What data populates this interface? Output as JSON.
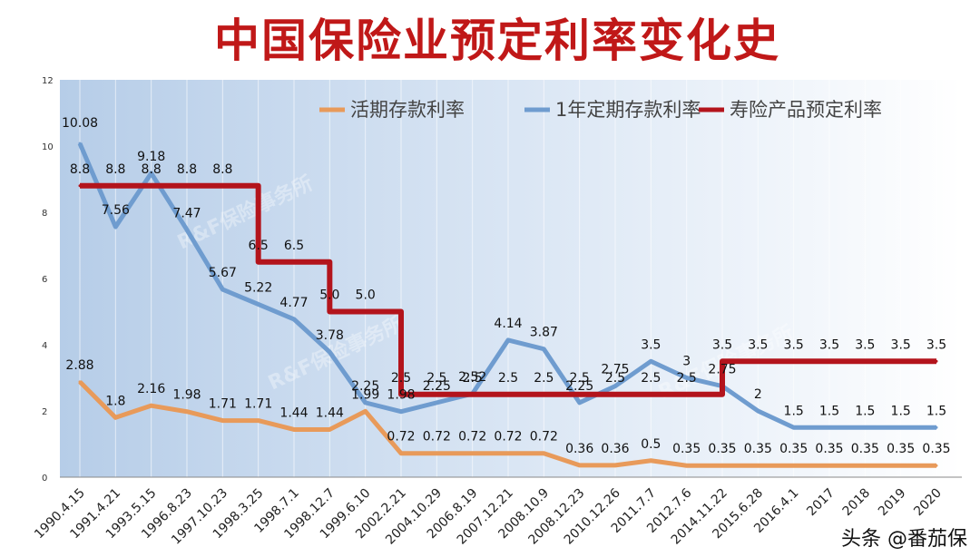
{
  "title": "中国保险业预定利率变化史",
  "watermark_text": "R&F保险事务所",
  "footer_text": "头条 @番茄保",
  "colors": {
    "title": "#c01818",
    "demand": "#e89a5a",
    "one_year": "#6f9ccf",
    "life": "#b3141c",
    "plot_bg_left": "#b6cde8",
    "plot_bg_right": "#ffffff"
  },
  "chart_data": {
    "type": "line",
    "title": "中国保险业预定利率变化史",
    "xlabel": "",
    "ylabel": "",
    "ylim": [
      0,
      12
    ],
    "yticks": [
      "0",
      "2",
      "4",
      "6",
      "8",
      "10",
      "12"
    ],
    "grid": "vertical",
    "legend_position": "top-right",
    "categories": [
      "1990.4.15",
      "1991.4.21",
      "1993.5.15",
      "1996.8.23",
      "1997.10.23",
      "1998.3.25",
      "1998.7.1",
      "1998.12.7",
      "1999.6.10",
      "2002.2.21",
      "2004.10.29",
      "2006.8.19",
      "2007.12.21",
      "2008.10.9",
      "2008.12.23",
      "2010.12.26",
      "2011.7.7",
      "2012.7.6",
      "2014.11.22",
      "2015.6.28",
      "2016.4.1",
      "2017",
      "2018",
      "2019",
      "2020"
    ],
    "series": [
      {
        "name": "活期存款利率",
        "style": "line",
        "values": [
          2.88,
          1.8,
          2.16,
          1.98,
          1.71,
          1.71,
          1.44,
          1.44,
          1.99,
          0.72,
          0.72,
          0.72,
          0.72,
          0.72,
          0.36,
          0.36,
          0.5,
          0.35,
          0.35,
          0.35,
          0.35,
          0.35,
          0.35,
          0.35,
          0.35
        ],
        "labels": [
          "2.88",
          "1.8",
          "2.16",
          "1.98",
          "1.71",
          "1.71",
          "1.44",
          "1.44",
          "1.99",
          "0.72",
          "0.72",
          "0.72",
          "0.72",
          "0.72",
          "0.36",
          "0.36",
          "0.5",
          "0.35",
          "0.35",
          "0.35",
          "0.35",
          "0.35",
          "0.35",
          "0.35",
          "0.35"
        ]
      },
      {
        "name": "1年定期存款利率",
        "style": "line",
        "values": [
          10.08,
          7.56,
          9.18,
          7.47,
          5.67,
          5.22,
          4.77,
          3.78,
          2.25,
          1.98,
          2.25,
          2.52,
          4.14,
          3.87,
          2.25,
          2.75,
          3.5,
          3.0,
          2.75,
          2.0,
          1.5,
          1.5,
          1.5,
          1.5,
          1.5
        ],
        "labels": [
          "10.08",
          "7.56",
          "9.18",
          "7.47",
          "5.67",
          "5.22",
          "4.77",
          "3.78",
          "2.25",
          "1.98",
          "2.25",
          "2.52",
          "4.14",
          "3.87",
          "2.25",
          "2.75",
          "3.5",
          "3",
          "2.75",
          "2",
          "1.5",
          "1.5",
          "1.5",
          "1.5",
          "1.5"
        ]
      },
      {
        "name": "寿险产品预定利率",
        "style": "step",
        "values": [
          8.8,
          8.8,
          8.8,
          8.8,
          8.8,
          6.5,
          6.5,
          5.0,
          5.0,
          2.5,
          2.5,
          2.5,
          2.5,
          2.5,
          2.5,
          2.5,
          2.5,
          2.5,
          3.5,
          3.5,
          3.5,
          3.5,
          3.5,
          3.5,
          3.5
        ],
        "labels": [
          "8.8",
          "8.8",
          "8.8",
          "8.8",
          "8.8",
          "6.5",
          "6.5",
          "5.0",
          "5.0",
          "2.5",
          "2.5",
          "2.5",
          "2.5",
          "2.5",
          "2.5",
          "2.5",
          "2.5",
          "2.5",
          "3.5",
          "3.5",
          "3.5",
          "3.5",
          "3.5",
          "3.5",
          "3.5"
        ]
      }
    ]
  }
}
